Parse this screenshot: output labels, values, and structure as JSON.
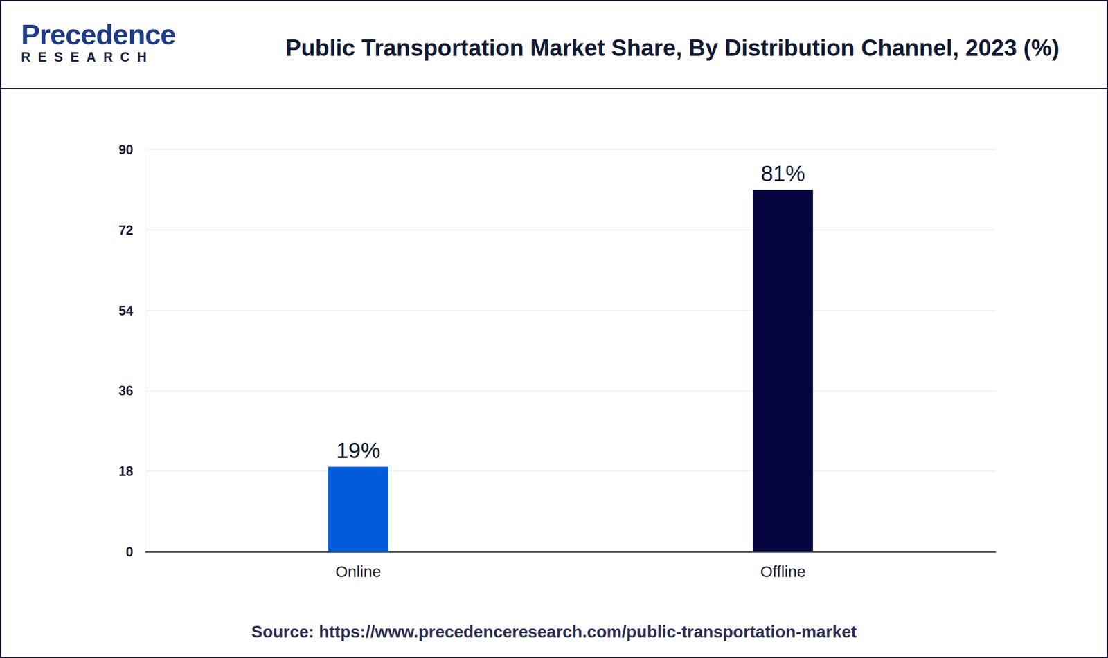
{
  "logo": {
    "name": "Precedence",
    "tagline": "RESEARCH"
  },
  "chart_data": {
    "type": "bar",
    "title": "Public Transportation Market Share, By Distribution Channel, 2023 (%)",
    "source": "Source: https://www.precedenceresearch.com/public-transportation-market",
    "categories": [
      "Online",
      "Offline"
    ],
    "values": [
      19,
      81
    ],
    "value_labels": [
      "19%",
      "81%"
    ],
    "colors": [
      "#005bdb",
      "#03033f"
    ],
    "ylim": [
      0,
      90
    ],
    "yticks": [
      0,
      18,
      36,
      54,
      72,
      90
    ],
    "grid": true,
    "data_labels": true
  }
}
